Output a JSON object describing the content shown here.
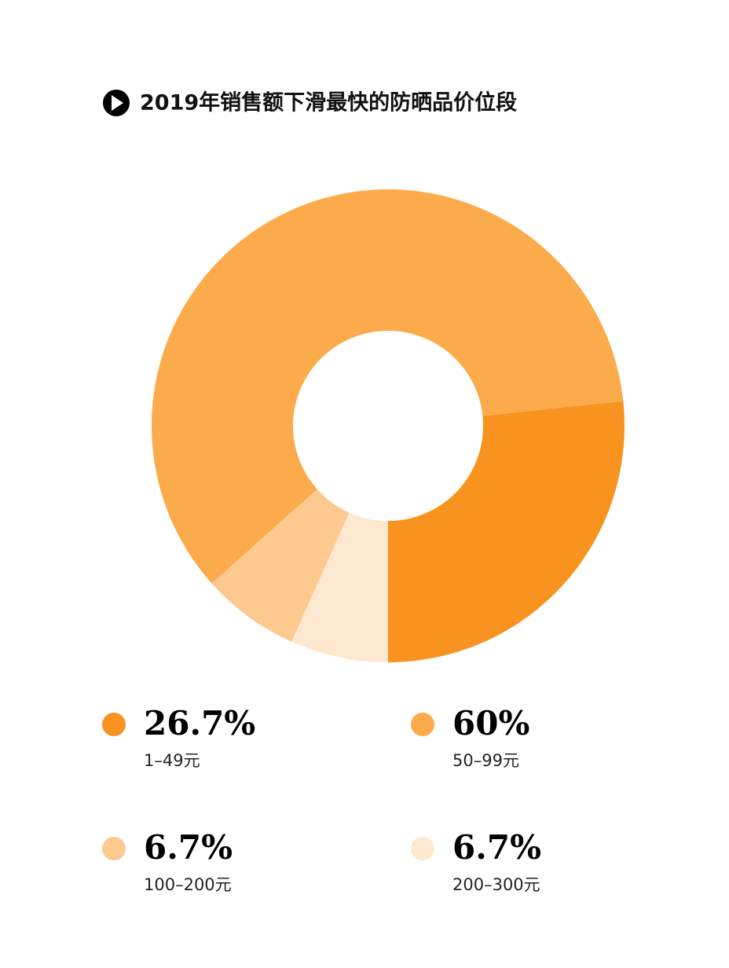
{
  "chart_data": {
    "type": "pie",
    "title": "2019年销售额下滑最快的防晒品价位段",
    "categories": [
      "1–49元",
      "50–99元",
      "100–200元",
      "200–300元"
    ],
    "values": [
      26.7,
      60,
      6.7,
      6.7
    ],
    "value_labels": [
      "26.7%",
      "60%",
      "6.7%",
      "6.7%"
    ],
    "colors": [
      "#f8931f",
      "#fbab4b",
      "#fdc98f",
      "#fee8d0"
    ]
  }
}
